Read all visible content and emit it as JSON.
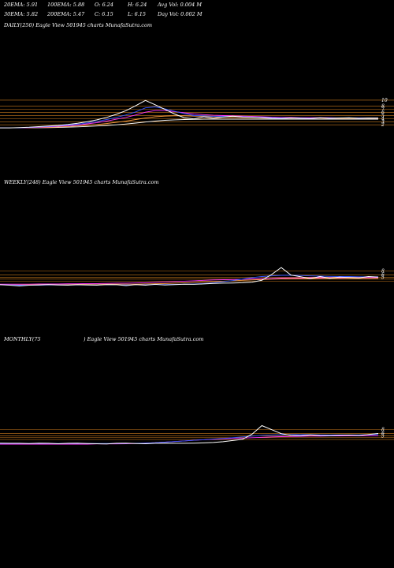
{
  "header": {
    "row1": [
      "20EMA: 5.91",
      "100EMA: 5.88",
      "O: 6.24",
      "H: 6.24",
      "Avg Vol: 0.004  M"
    ],
    "row2": [
      "30EMA: 5.82",
      "200EMA: 5.47",
      "C: 6.15",
      "L: 6.15",
      "Day Vol: 0.002  M"
    ]
  },
  "panels": {
    "daily": {
      "title": "DAILY(250) Eagle   View  501945 charts MunafaSutra.com"
    },
    "weekly": {
      "title": "WEEKLY(248) Eagle   View  501945 charts MunafaSutra.com"
    },
    "monthly": {
      "title_left": "MONTHLY(75",
      "title_right": ") Eagle   View  501945 charts MunafaSutra.com"
    }
  },
  "colors": {
    "background": "#000000",
    "price": "#ffffff",
    "hline": "#c87a1e",
    "ema_short": "#3355ff",
    "ema_mid": "#ff33ff",
    "ema_long": "#ffffff",
    "ema_warm": "#ffa040"
  },
  "chart_data": [
    {
      "type": "line",
      "title": "DAILY(250) Eagle   View  501945 charts MunafaSutra.com",
      "ylim": [
        0,
        11
      ],
      "yticks": [
        "10",
        "8",
        "7",
        "6",
        "5",
        "4",
        "3",
        "2"
      ],
      "hlines": [
        10,
        8,
        7,
        6,
        5,
        4,
        3,
        2
      ],
      "series": [
        {
          "values": [
            1.0,
            1.0,
            1.1,
            1.2,
            1.4,
            1.6,
            1.8,
            2.1,
            2.5,
            3.0,
            3.6,
            4.4,
            5.4,
            6.6,
            8.2,
            9.9,
            8.5,
            7.0,
            5.5,
            4.3,
            3.9,
            4.6,
            4.1,
            4.5,
            4.8,
            4.5,
            4.4,
            4.3,
            4.1,
            4.0,
            4.2,
            4.1,
            4.0,
            4.3,
            4.1,
            4.2,
            4.3,
            4.1,
            4.2,
            4.15
          ]
        },
        {
          "values": [
            1.0,
            1.0,
            1.05,
            1.15,
            1.3,
            1.45,
            1.65,
            1.9,
            2.2,
            2.6,
            3.1,
            3.7,
            4.4,
            5.2,
            6.2,
            7.5,
            7.8,
            7.2,
            6.4,
            5.6,
            5.0,
            4.9,
            4.7,
            4.7,
            4.7,
            4.6,
            4.5,
            4.4,
            4.3,
            4.2,
            4.2,
            4.2,
            4.1,
            4.2,
            4.2,
            4.2,
            4.2,
            4.2,
            4.2,
            4.2
          ]
        },
        {
          "values": [
            1.0,
            1.0,
            1.02,
            1.08,
            1.2,
            1.33,
            1.5,
            1.7,
            1.95,
            2.3,
            2.7,
            3.2,
            3.8,
            4.4,
            5.2,
            6.1,
            6.6,
            6.6,
            6.3,
            5.9,
            5.5,
            5.3,
            5.1,
            5.0,
            4.9,
            4.8,
            4.7,
            4.6,
            4.5,
            4.4,
            4.4,
            4.3,
            4.3,
            4.3,
            4.3,
            4.2,
            4.2,
            4.2,
            4.2,
            4.2
          ]
        },
        {
          "values": [
            1.0,
            1.0,
            1.0,
            1.03,
            1.1,
            1.18,
            1.3,
            1.45,
            1.62,
            1.85,
            2.1,
            2.4,
            2.8,
            3.2,
            3.7,
            4.2,
            4.6,
            4.8,
            4.9,
            4.9,
            4.8,
            4.7,
            4.6,
            4.5,
            4.5,
            4.4,
            4.4,
            4.3,
            4.3,
            4.3,
            4.2,
            4.2,
            4.2,
            4.2,
            4.1,
            4.1,
            4.1,
            4.1,
            4.1,
            4.1
          ]
        },
        {
          "values": [
            1.0,
            1.0,
            1.0,
            1.01,
            1.04,
            1.08,
            1.14,
            1.22,
            1.32,
            1.45,
            1.6,
            1.78,
            2.0,
            2.25,
            2.55,
            2.9,
            3.2,
            3.45,
            3.6,
            3.7,
            3.75,
            3.8,
            3.8,
            3.8,
            3.8,
            3.8,
            3.8,
            3.8,
            3.8,
            3.8,
            3.8,
            3.8,
            3.8,
            3.8,
            3.8,
            3.8,
            3.8,
            3.8,
            3.8,
            3.8
          ]
        }
      ]
    },
    {
      "type": "line",
      "title": "WEEKLY(248) Eagle   View  501945 charts MunafaSutra.com",
      "ylim": [
        0,
        11
      ],
      "yticks": [
        "8",
        "6",
        "5"
      ],
      "hlines": [
        8,
        6,
        5,
        4,
        3
      ],
      "series": [
        {
          "values": [
            1.2,
            1.0,
            0.6,
            1.0,
            1.1,
            1.3,
            1.1,
            1.0,
            1.2,
            1.1,
            1.0,
            1.3,
            1.2,
            0.8,
            1.3,
            1.0,
            1.4,
            1.1,
            1.3,
            1.5,
            1.4,
            1.6,
            1.9,
            2.0,
            2.1,
            2.2,
            2.5,
            3.4,
            6.3,
            9.8,
            6.0,
            5.2,
            4.3,
            5.3,
            4.4,
            5.0,
            4.8,
            4.6,
            5.3,
            5.0
          ]
        },
        {
          "values": [
            1.2,
            1.1,
            1.0,
            1.0,
            1.0,
            1.1,
            1.1,
            1.1,
            1.1,
            1.1,
            1.1,
            1.2,
            1.2,
            1.1,
            1.2,
            1.2,
            1.3,
            1.3,
            1.4,
            1.5,
            1.6,
            1.8,
            2.2,
            2.7,
            3.3,
            4.0,
            4.7,
            5.3,
            5.6,
            5.9,
            5.9,
            5.8,
            5.6,
            5.5,
            5.4,
            5.3,
            5.3,
            5.2,
            5.2,
            5.2
          ]
        },
        {
          "values": [
            1.5,
            1.5,
            1.5,
            1.5,
            1.6,
            1.6,
            1.6,
            1.7,
            1.7,
            1.8,
            1.8,
            1.9,
            2.0,
            2.0,
            2.1,
            2.2,
            2.4,
            2.6,
            2.8,
            3.0,
            3.2,
            3.4,
            3.6,
            3.7,
            3.8,
            3.9,
            4.1,
            4.2,
            4.3,
            4.5,
            4.6,
            4.6,
            4.7,
            4.7,
            4.7,
            4.7,
            4.8,
            4.8,
            4.8,
            4.8
          ]
        },
        {
          "values": [
            1.4,
            1.4,
            1.4,
            1.4,
            1.4,
            1.4,
            1.4,
            1.4,
            1.4,
            1.4,
            1.5,
            1.5,
            1.5,
            1.5,
            1.5,
            1.6,
            1.7,
            1.8,
            2.0,
            2.2,
            2.4,
            2.6,
            2.8,
            3.0,
            3.2,
            3.4,
            3.6,
            3.8,
            4.0,
            4.1,
            4.2,
            4.3,
            4.3,
            4.4,
            4.4,
            4.4,
            4.4,
            4.4,
            4.4,
            4.4
          ]
        }
      ]
    },
    {
      "type": "line",
      "title": "MONTHLY(75) Eagle   View  501945 charts MunafaSutra.com",
      "ylim": [
        0,
        11
      ],
      "yticks": [
        "8",
        "6",
        "5"
      ],
      "hlines": [
        8,
        6,
        5,
        4,
        3
      ],
      "series": [
        {
          "values": [
            1.3,
            1.2,
            1.2,
            1.1,
            1.3,
            1.2,
            1.0,
            1.2,
            1.3,
            1.1,
            1.0,
            0.9,
            1.2,
            1.3,
            1.1,
            1.0,
            1.2,
            1.3,
            1.2,
            1.2,
            1.3,
            1.4,
            1.6,
            2.0,
            2.6,
            3.2,
            5.8,
            10.0,
            8.0,
            6.0,
            5.2,
            5.0,
            5.4,
            5.1,
            5.0,
            5.2,
            5.3,
            5.1,
            5.6,
            6.1
          ]
        },
        {
          "values": [
            1.1,
            1.1,
            1.1,
            1.1,
            1.1,
            1.1,
            1.1,
            1.1,
            1.1,
            1.1,
            1.1,
            1.1,
            1.1,
            1.1,
            1.2,
            1.3,
            1.5,
            1.8,
            2.1,
            2.4,
            2.7,
            3.0,
            3.3,
            3.6,
            4.0,
            4.4,
            4.8,
            5.2,
            5.4,
            5.5,
            5.5,
            5.5,
            5.5,
            5.4,
            5.4,
            5.4,
            5.4,
            5.4,
            5.5,
            5.6
          ]
        },
        {
          "values": [
            0.8,
            0.8,
            0.8,
            0.8,
            0.8,
            0.8,
            0.8,
            0.8,
            0.8,
            0.8,
            0.9,
            0.9,
            0.9,
            1.0,
            1.1,
            1.3,
            1.5,
            1.8,
            2.1,
            2.4,
            2.7,
            3.0,
            3.2,
            3.4,
            3.6,
            3.8,
            4.0,
            4.2,
            4.4,
            4.5,
            4.6,
            4.7,
            4.8,
            4.8,
            4.9,
            4.9,
            5.0,
            5.0,
            5.0,
            5.0
          ]
        }
      ]
    }
  ]
}
